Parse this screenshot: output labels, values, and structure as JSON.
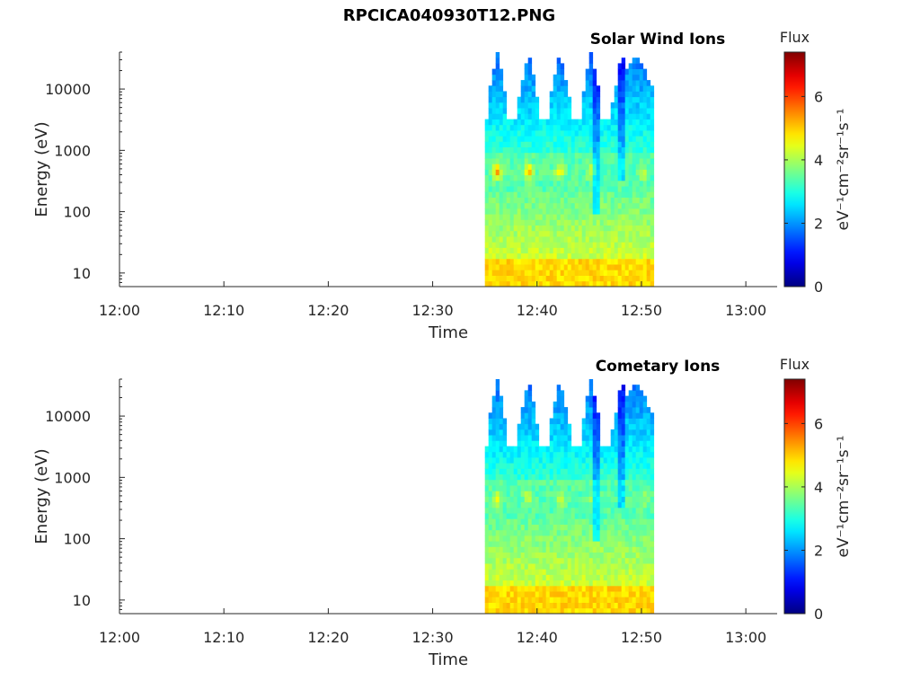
{
  "figure": {
    "title": "RPCICA040930T12.PNG"
  },
  "chart_data": [
    {
      "type": "heatmap",
      "title": "Solar Wind Ions",
      "xlabel": "Time",
      "ylabel": "Energy (eV)",
      "x_ticks": [
        "12:00",
        "12:10",
        "12:20",
        "12:30",
        "12:40",
        "12:50",
        "13:00"
      ],
      "x_range": [
        "12:00",
        "13:03"
      ],
      "y_scale": "log",
      "y_ticks": [
        "10",
        "100",
        "1000",
        "10000"
      ],
      "y_range_ev": [
        6,
        40000
      ],
      "data_interval": [
        "12:35",
        "12:51"
      ],
      "colorbar": {
        "label": "Flux",
        "units": "eV⁻¹cm⁻²sr⁻¹s⁻¹",
        "ticks": [
          "0",
          "2",
          "4",
          "6"
        ],
        "range": [
          0,
          7.4
        ],
        "colormap": "jet"
      },
      "sweep_peaks": [
        "12:36",
        "12:39",
        "12:42",
        "12:45",
        "12:48",
        "12:49"
      ],
      "hotspots": [
        {
          "time": "12:36",
          "energy_ev": 450,
          "flux": 5.4
        },
        {
          "time": "12:39",
          "energy_ev": 450,
          "flux": 5.2
        },
        {
          "time": "12:42",
          "energy_ev": 450,
          "flux": 4.7
        },
        {
          "time": "12:45",
          "energy_ev": 450,
          "flux": 4.3
        },
        {
          "time": "12:50",
          "energy_ev": 450,
          "flux": 4.2
        }
      ]
    },
    {
      "type": "heatmap",
      "title": "Cometary Ions",
      "xlabel": "Time",
      "ylabel": "Energy (eV)",
      "x_ticks": [
        "12:00",
        "12:10",
        "12:20",
        "12:30",
        "12:40",
        "12:50",
        "13:00"
      ],
      "x_range": [
        "12:00",
        "13:03"
      ],
      "y_scale": "log",
      "y_ticks": [
        "10",
        "100",
        "1000",
        "10000"
      ],
      "y_range_ev": [
        6,
        40000
      ],
      "data_interval": [
        "12:35",
        "12:51"
      ],
      "colorbar": {
        "label": "Flux",
        "units": "eV⁻¹cm⁻²sr⁻¹s⁻¹",
        "ticks": [
          "0",
          "2",
          "4",
          "6"
        ],
        "range": [
          0,
          7.4
        ],
        "colormap": "jet"
      },
      "sweep_peaks": [
        "12:36",
        "12:39",
        "12:42",
        "12:45",
        "12:48",
        "12:49"
      ],
      "hotspots": [
        {
          "time": "12:36",
          "energy_ev": 450,
          "flux": 4.6
        },
        {
          "time": "12:39",
          "energy_ev": 450,
          "flux": 4.4
        },
        {
          "time": "12:42",
          "energy_ev": 450,
          "flux": 4.2
        },
        {
          "time": "12:45",
          "energy_ev": 450,
          "flux": 3.9
        },
        {
          "time": "12:50",
          "energy_ev": 450,
          "flux": 3.9
        }
      ]
    }
  ]
}
